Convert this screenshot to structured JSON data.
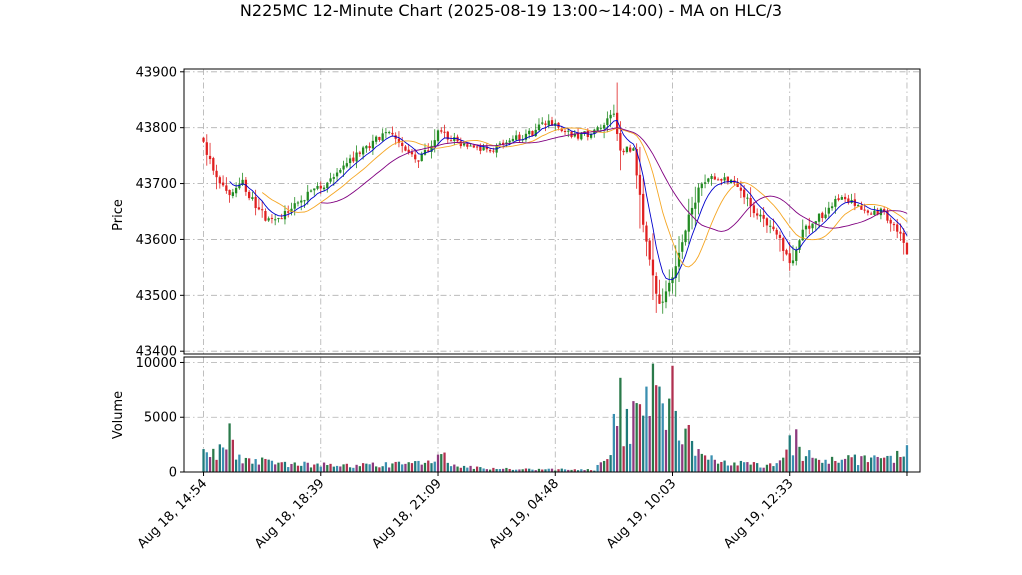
{
  "chart_data": {
    "type": "candlestick",
    "title": "N225MC 12-Minute Chart (2025-08-19 13:00~14:00) - MA on HLC/3",
    "price_panel": {
      "ylabel": "Price",
      "ylim": [
        43395,
        43905
      ],
      "yticks": [
        43400,
        43500,
        43600,
        43700,
        43800,
        43900
      ],
      "grid": true
    },
    "volume_panel": {
      "ylabel": "Volume",
      "ylim": [
        0,
        10500
      ],
      "yticks": [
        0,
        5000,
        10000
      ],
      "grid": true
    },
    "x_range": [
      -6,
      220
    ],
    "xticks": [
      {
        "index": 0,
        "label": "Aug 18, 14:54"
      },
      {
        "index": 36,
        "label": "Aug 18, 18:39"
      },
      {
        "index": 72,
        "label": "Aug 18, 21:09"
      },
      {
        "index": 108,
        "label": "Aug 19, 04:48"
      },
      {
        "index": 144,
        "label": "Aug 19, 10:03"
      },
      {
        "index": 180,
        "label": "Aug 19, 12:33"
      },
      {
        "index": 216,
        "label": ""
      }
    ],
    "colors": {
      "up": "#228b22",
      "down": "#e02020",
      "volume_palette": [
        "#1f7a7a",
        "#3a8fb0",
        "#8e3a7e",
        "#2a7a4a",
        "#b03050"
      ],
      "ma_short": "#0000cc",
      "ma_mid": "#f5a623",
      "ma_long": "#800080"
    },
    "close_anchors": [
      [
        0,
        43775
      ],
      [
        4,
        43705
      ],
      [
        8,
        43680
      ],
      [
        12,
        43700
      ],
      [
        16,
        43660
      ],
      [
        20,
        43632
      ],
      [
        26,
        43650
      ],
      [
        32,
        43682
      ],
      [
        38,
        43700
      ],
      [
        44,
        43735
      ],
      [
        50,
        43765
      ],
      [
        56,
        43792
      ],
      [
        62,
        43760
      ],
      [
        66,
        43745
      ],
      [
        70,
        43768
      ],
      [
        72,
        43800
      ],
      [
        76,
        43778
      ],
      [
        82,
        43768
      ],
      [
        88,
        43762
      ],
      [
        94,
        43775
      ],
      [
        100,
        43788
      ],
      [
        106,
        43810
      ],
      [
        110,
        43800
      ],
      [
        114,
        43785
      ],
      [
        118,
        43790
      ],
      [
        122,
        43800
      ],
      [
        126,
        43830
      ],
      [
        128,
        43760
      ],
      [
        132,
        43760
      ],
      [
        136,
        43590
      ],
      [
        140,
        43480
      ],
      [
        144,
        43530
      ],
      [
        148,
        43620
      ],
      [
        152,
        43690
      ],
      [
        156,
        43712
      ],
      [
        160,
        43705
      ],
      [
        164,
        43700
      ],
      [
        168,
        43660
      ],
      [
        172,
        43635
      ],
      [
        176,
        43610
      ],
      [
        180,
        43555
      ],
      [
        184,
        43612
      ],
      [
        188,
        43635
      ],
      [
        192,
        43655
      ],
      [
        196,
        43680
      ],
      [
        200,
        43660
      ],
      [
        204,
        43645
      ],
      [
        208,
        43652
      ],
      [
        212,
        43628
      ],
      [
        216,
        43580
      ]
    ],
    "volume_anchors": [
      [
        0,
        1500
      ],
      [
        6,
        2200
      ],
      [
        8,
        3600
      ],
      [
        10,
        1400
      ],
      [
        20,
        800
      ],
      [
        40,
        600
      ],
      [
        65,
        700
      ],
      [
        70,
        900
      ],
      [
        72,
        2400
      ],
      [
        76,
        600
      ],
      [
        90,
        300
      ],
      [
        104,
        250
      ],
      [
        120,
        200
      ],
      [
        126,
        2500
      ],
      [
        130,
        4200
      ],
      [
        134,
        4800
      ],
      [
        138,
        6200
      ],
      [
        142,
        3800
      ],
      [
        144,
        5800
      ],
      [
        148,
        3300
      ],
      [
        152,
        2400
      ],
      [
        156,
        1400
      ],
      [
        164,
        800
      ],
      [
        176,
        600
      ],
      [
        180,
        2400
      ],
      [
        182,
        2000
      ],
      [
        190,
        1000
      ],
      [
        200,
        1100
      ],
      [
        210,
        1300
      ],
      [
        216,
        1700
      ]
    ],
    "volume_spikes": [
      [
        126,
        5300
      ],
      [
        128,
        8600
      ],
      [
        138,
        9900
      ],
      [
        144,
        9700
      ],
      [
        140,
        7800
      ],
      [
        182,
        3900
      ]
    ]
  }
}
